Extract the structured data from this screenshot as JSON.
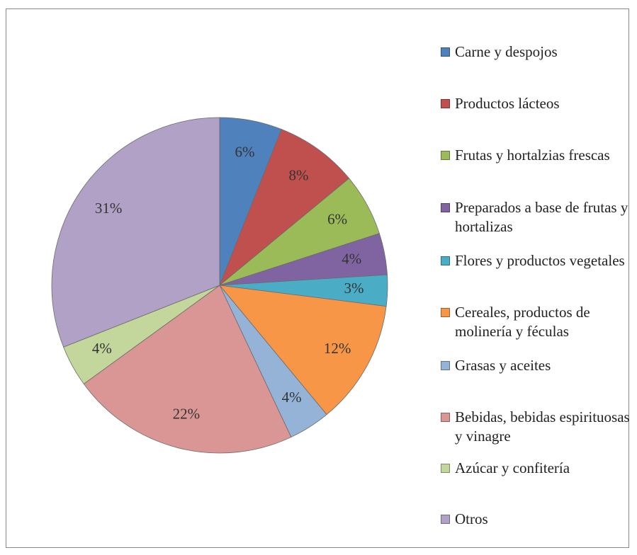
{
  "chart_data": {
    "type": "pie",
    "categories": [
      "Carne y despojos",
      "Productos lácteos",
      "Frutas y hortalzias frescas",
      "Preparados a base de frutas y hortalizas",
      "Flores y productos vegetales",
      "Cereales, productos de molinería y féculas",
      "Grasas y aceites",
      "Bebidas, bebidas espirituosas y vinagre",
      "Azúcar y confitería",
      "Otros"
    ],
    "values": [
      6,
      8,
      6,
      4,
      3,
      12,
      4,
      22,
      4,
      31
    ],
    "value_labels": [
      "6%",
      "8%",
      "6%",
      "4%",
      "3%",
      "12%",
      "4%",
      "22%",
      "4%",
      "31%"
    ],
    "colors": [
      "#4F81BD",
      "#C0504D",
      "#9BBB59",
      "#8064A2",
      "#4BACC6",
      "#F79646",
      "#95B3D7",
      "#D99694",
      "#C3D69B",
      "#B2A1C7"
    ],
    "legend": "right"
  }
}
